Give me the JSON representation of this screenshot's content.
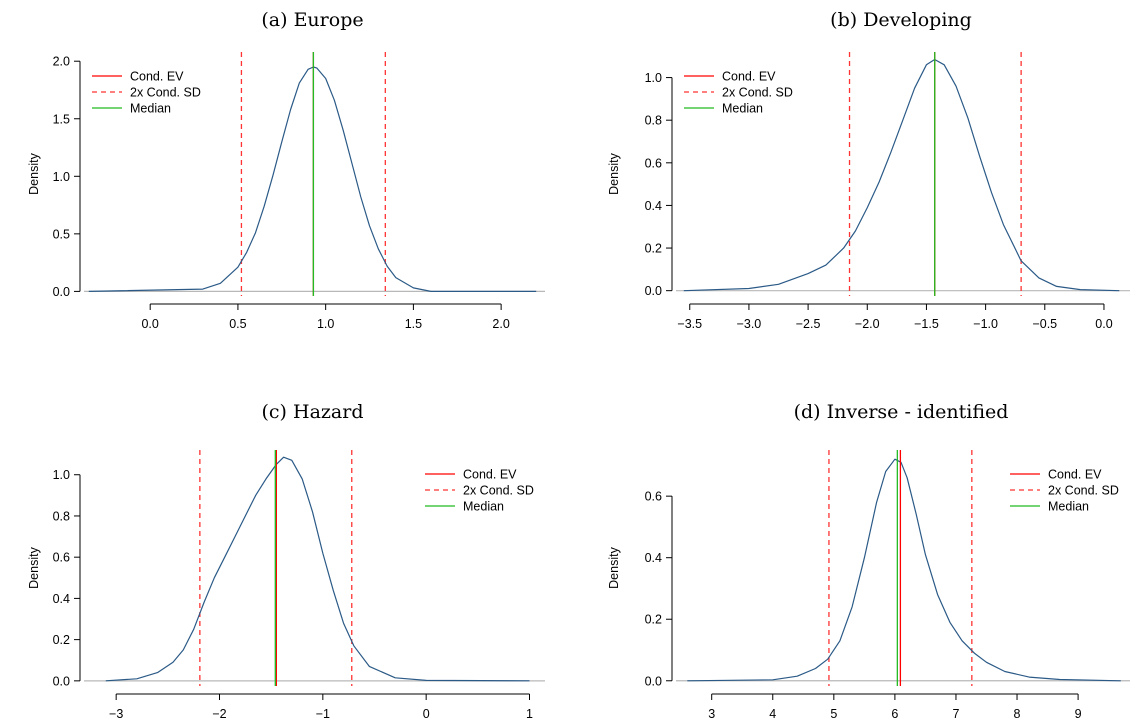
{
  "colors": {
    "density": "#2b5a87",
    "ev": "#ff0000",
    "sd": "#ff3333",
    "median": "#22bb22",
    "baseline": "#b8b8b8"
  },
  "chart_data": [
    {
      "type": "line",
      "title": "(a)  Europe",
      "ylabel": "Density",
      "xticks": [
        0.0,
        0.5,
        1.0,
        1.5,
        2.0
      ],
      "xtick_labels": [
        "0.0",
        "0.5",
        "1.0",
        "1.5",
        "2.0"
      ],
      "yticks": [
        0.0,
        0.5,
        1.0,
        1.5,
        2.0
      ],
      "ytick_labels": [
        "0.0",
        "0.5",
        "1.0",
        "1.5",
        "2.0"
      ],
      "xlim": [
        -0.4,
        2.25
      ],
      "ylim": [
        -0.04,
        2.08
      ],
      "legend_position": "top-left",
      "legend": [
        "Cond. EV",
        "2x Cond. SD",
        "Median"
      ],
      "series": [
        {
          "x": [
            -0.35,
            0.3,
            0.4,
            0.5,
            0.55,
            0.6,
            0.65,
            0.7,
            0.75,
            0.8,
            0.85,
            0.9,
            0.93,
            0.95,
            1.0,
            1.05,
            1.1,
            1.15,
            1.2,
            1.25,
            1.3,
            1.35,
            1.4,
            1.5,
            1.6,
            2.2
          ],
          "y": [
            0.0,
            0.02,
            0.07,
            0.21,
            0.34,
            0.51,
            0.74,
            1.01,
            1.3,
            1.58,
            1.81,
            1.93,
            1.95,
            1.94,
            1.85,
            1.66,
            1.4,
            1.11,
            0.82,
            0.57,
            0.37,
            0.22,
            0.12,
            0.03,
            0.0,
            0.0
          ]
        }
      ],
      "cond_ev": 0.93,
      "median": 0.93,
      "sd_lines": [
        0.52,
        1.34
      ]
    },
    {
      "type": "line",
      "title": "(b)  Developing",
      "ylabel": "Density",
      "xticks": [
        -3.5,
        -3.0,
        -2.5,
        -2.0,
        -1.5,
        -1.0,
        -0.5,
        0.0
      ],
      "xtick_labels": [
        "−3.5",
        "−3.0",
        "−2.5",
        "−2.0",
        "−1.5",
        "−1.0",
        "−0.5",
        "0.0"
      ],
      "yticks": [
        0.0,
        0.2,
        0.4,
        0.6,
        0.8,
        1.0
      ],
      "ytick_labels": [
        "0.0",
        "0.2",
        "0.4",
        "0.6",
        "0.8",
        "1.0"
      ],
      "xlim": [
        -3.65,
        0.22
      ],
      "ylim": [
        -0.025,
        1.12
      ],
      "legend_position": "top-left",
      "legend": [
        "Cond. EV",
        "2x Cond. SD",
        "Median"
      ],
      "series": [
        {
          "x": [
            -3.55,
            -3.0,
            -2.75,
            -2.5,
            -2.35,
            -2.2,
            -2.1,
            -2.0,
            -1.9,
            -1.8,
            -1.7,
            -1.6,
            -1.5,
            -1.43,
            -1.35,
            -1.25,
            -1.15,
            -1.05,
            -0.95,
            -0.85,
            -0.7,
            -0.55,
            -0.4,
            -0.2,
            0.13
          ],
          "y": [
            0.0,
            0.01,
            0.03,
            0.08,
            0.12,
            0.2,
            0.28,
            0.39,
            0.51,
            0.65,
            0.8,
            0.95,
            1.06,
            1.085,
            1.06,
            0.96,
            0.81,
            0.63,
            0.46,
            0.31,
            0.14,
            0.06,
            0.02,
            0.005,
            0.0
          ]
        }
      ],
      "cond_ev": -1.43,
      "median": -1.43,
      "sd_lines": [
        -2.15,
        -0.7
      ]
    },
    {
      "type": "line",
      "title": "(c)  Hazard",
      "ylabel": "Density",
      "xticks": [
        -3,
        -2,
        -1,
        0,
        1
      ],
      "xtick_labels": [
        "−3",
        "−2",
        "−1",
        "0",
        "1"
      ],
      "yticks": [
        0.0,
        0.2,
        0.4,
        0.6,
        0.8,
        1.0
      ],
      "ytick_labels": [
        "0.0",
        "0.2",
        "0.4",
        "0.6",
        "0.8",
        "1.0"
      ],
      "xlim": [
        -3.35,
        1.15
      ],
      "ylim": [
        -0.025,
        1.12
      ],
      "legend_position": "top-right",
      "legend": [
        "Cond. EV",
        "2x Cond. SD",
        "Median"
      ],
      "series": [
        {
          "x": [
            -3.1,
            -2.8,
            -2.6,
            -2.45,
            -2.35,
            -2.25,
            -2.15,
            -2.05,
            -1.95,
            -1.85,
            -1.75,
            -1.65,
            -1.55,
            -1.45,
            -1.38,
            -1.3,
            -1.2,
            -1.1,
            -1.0,
            -0.9,
            -0.8,
            -0.7,
            -0.55,
            -0.3,
            0.0,
            1.0
          ],
          "y": [
            0.0,
            0.01,
            0.04,
            0.09,
            0.15,
            0.25,
            0.38,
            0.5,
            0.6,
            0.7,
            0.8,
            0.9,
            0.98,
            1.05,
            1.085,
            1.07,
            0.98,
            0.82,
            0.62,
            0.44,
            0.28,
            0.17,
            0.07,
            0.015,
            0.002,
            0.0
          ]
        }
      ],
      "cond_ev": -1.45,
      "median": -1.46,
      "sd_lines": [
        -2.19,
        -0.72
      ]
    },
    {
      "type": "line",
      "title": "(d)  Inverse - identified",
      "ylabel": "Density",
      "xticks": [
        3,
        4,
        5,
        6,
        7,
        8,
        9
      ],
      "xtick_labels": [
        "3",
        "4",
        "5",
        "6",
        "7",
        "8",
        "9"
      ],
      "yticks": [
        0.0,
        0.2,
        0.4,
        0.6
      ],
      "ytick_labels": [
        "0.0",
        "0.2",
        "0.4",
        "0.6"
      ],
      "xlim": [
        2.35,
        9.85
      ],
      "ylim": [
        -0.017,
        0.75
      ],
      "legend_position": "top-right",
      "legend": [
        "Cond. EV",
        "2x Cond. SD",
        "Median"
      ],
      "series": [
        {
          "x": [
            2.6,
            4.0,
            4.4,
            4.7,
            4.9,
            5.1,
            5.3,
            5.5,
            5.7,
            5.85,
            6.0,
            6.1,
            6.2,
            6.35,
            6.5,
            6.7,
            6.9,
            7.1,
            7.3,
            7.5,
            7.8,
            8.2,
            8.7,
            9.7
          ],
          "y": [
            0.0,
            0.003,
            0.015,
            0.04,
            0.07,
            0.13,
            0.24,
            0.4,
            0.58,
            0.68,
            0.72,
            0.71,
            0.66,
            0.54,
            0.41,
            0.28,
            0.19,
            0.13,
            0.09,
            0.06,
            0.03,
            0.012,
            0.004,
            0.0
          ]
        }
      ],
      "cond_ev": 6.09,
      "median": 6.04,
      "sd_lines": [
        4.92,
        7.26
      ]
    }
  ]
}
